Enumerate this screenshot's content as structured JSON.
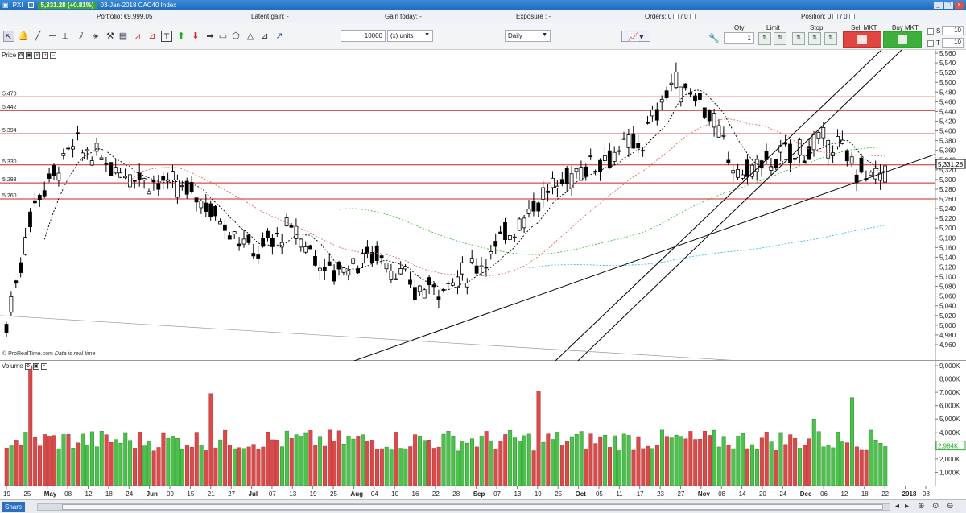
{
  "titlebar": {
    "app_icon": "window-icon",
    "app_name": "PXI",
    "price": "5,331.28 (+0.81%)",
    "title": "03-Jan-2018 CAC40 Index",
    "minimize_label": "_",
    "maximize_label": "□",
    "close_label": "×"
  },
  "infobar": {
    "portfolio_label": "Portfolio:",
    "portfolio_value": "€9,999.05",
    "latent_label": "Latent gain:",
    "latent_value": "-",
    "today_label": "Gain today:",
    "today_value": "-",
    "exposure_label": "Exposure :",
    "exposure_value": "-",
    "orders_label": "Orders:",
    "orders_a": "0",
    "orders_sep": "/",
    "orders_b": "0",
    "position_label": "Position:",
    "position_a": "0",
    "position_b": "0"
  },
  "toolbar": {
    "quantity_value": "10000",
    "units_value": "(x) units",
    "timeframe_value": "Daily",
    "qty_label": "Qty",
    "qty_value": "1",
    "limit_label": "Limit",
    "stop_label": "Stop",
    "sell_label": "Sell MKT",
    "buy_label": "Buy MKT",
    "s_label": "S",
    "s_value": "10",
    "t_label": "T",
    "t_value": "10"
  },
  "price_panel": {
    "label": "Price",
    "watermark": "© ProRealTime.com",
    "realtime_note": "Data is real time",
    "hlines": [
      {
        "value": 5470,
        "label": "5,470"
      },
      {
        "value": 5442,
        "label": "5,442"
      },
      {
        "value": 5394,
        "label": "5,394"
      },
      {
        "value": 5330,
        "label": "5,330"
      },
      {
        "value": 5293,
        "label": "5,293"
      },
      {
        "value": 5260,
        "label": "5,260"
      }
    ],
    "axis": [
      "5,560",
      "5,540",
      "5,520",
      "5,500",
      "5,480",
      "5,460",
      "5,440",
      "5,420",
      "5,400",
      "5,380",
      "5,360",
      "5,340",
      "5,320",
      "5,300",
      "5,280",
      "5,260",
      "5,240",
      "5,220",
      "5,200",
      "5,180",
      "5,160",
      "5,140",
      "5,120",
      "5,100",
      "5,080",
      "5,060",
      "5,040",
      "5,020",
      "5,000",
      "4,980",
      "4,960"
    ],
    "current_price": "5,331.28"
  },
  "volume_panel": {
    "label": "Volume",
    "axis": [
      "9,000K",
      "8,000K",
      "7,000K",
      "6,000K",
      "5,000K",
      "4,000K",
      "3,000K",
      "2,000K",
      "1,000K"
    ],
    "current": "2,984K"
  },
  "x_labels": [
    "19",
    "25",
    "May",
    "08",
    "12",
    "18",
    "24",
    "Jun",
    "09",
    "15",
    "21",
    "27",
    "Jul",
    "07",
    "13",
    "19",
    "25",
    "Aug",
    "04",
    "10",
    "16",
    "22",
    "28",
    "Sep",
    "07",
    "13",
    "19",
    "25",
    "Oct",
    "05",
    "11",
    "17",
    "23",
    "27",
    "Nov",
    "08",
    "14",
    "20",
    "24",
    "Dec",
    "06",
    "12",
    "18",
    "22",
    "2018",
    "08"
  ],
  "bottombar": {
    "share_label": "Share"
  },
  "colors": {
    "up": "#4cc24c",
    "down": "#d94b4b",
    "hline": "#cc2222",
    "ma_black": "#000000",
    "ma_red": "#e26a6a",
    "ma_green": "#3fbf3f",
    "ma_cyan": "#33bbe0"
  }
}
